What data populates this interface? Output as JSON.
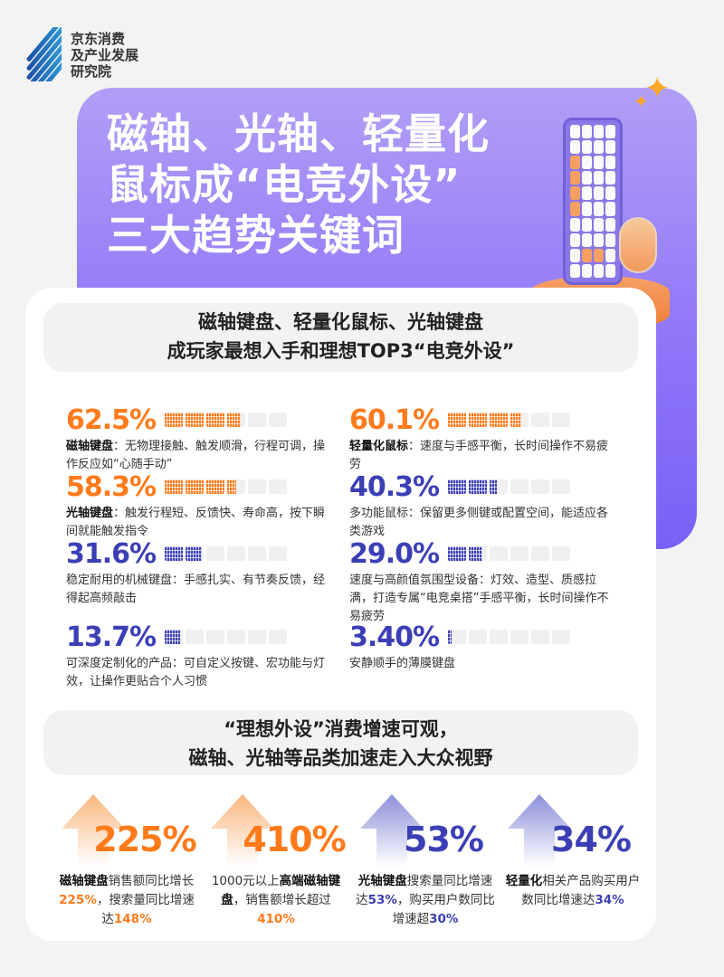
{
  "logo": {
    "lines": [
      "京东消费",
      "及产业发展",
      "研究院"
    ]
  },
  "hero": {
    "title_lines": [
      "磁轴、光轴、轻量化",
      "鼠标成“电竞外设”",
      "三大趋势关键词"
    ]
  },
  "colors": {
    "orange": "#ff7a1a",
    "blue": "#3b3fb5",
    "purple": "#8f76f8"
  },
  "section1": {
    "heading_lines": [
      "磁轴键盘、轻量化鼠标、光轴键盘",
      "成玩家最想入手和理想TOP3“电竞外设”"
    ],
    "slots_total": 6,
    "stats": [
      {
        "value": "62.5%",
        "fraction": 0.625,
        "color": "orange",
        "label": "磁轴键盘",
        "text": "：无物理接触、触发顺滑，行程可调，操作反应如“心随手动”"
      },
      {
        "value": "60.1%",
        "fraction": 0.601,
        "color": "orange",
        "label": "轻量化鼠标",
        "text": "：速度与手感平衡，长时间操作不易疲劳"
      },
      {
        "value": "58.3%",
        "fraction": 0.583,
        "color": "orange",
        "label": "光轴键盘",
        "text": "：触发行程短、反馈快、寿命高，按下瞬间就能触发指令"
      },
      {
        "value": "40.3%",
        "fraction": 0.403,
        "color": "blue",
        "label": "",
        "text": "多功能鼠标：保留更多侧键或配置空间，能适应各类游戏"
      },
      {
        "value": "31.6%",
        "fraction": 0.316,
        "color": "blue",
        "label": "",
        "text": "稳定耐用的机械键盘：手感扎实、有节奏反馈，经得起高频敲击"
      },
      {
        "value": "29.0%",
        "fraction": 0.29,
        "color": "blue",
        "label": "",
        "text": "速度与高颜值氛围型设备：灯效、造型、质感拉满，打造专属“电竞桌搭”手感平衡，长时间操作不易疲劳"
      },
      {
        "value": "13.7%",
        "fraction": 0.137,
        "color": "blue",
        "label": "",
        "text": "可深度定制化的产品：可自定义按键、宏功能与灯效，让操作更贴合个人习惯"
      },
      {
        "value": "3.40%",
        "fraction": 0.034,
        "color": "blue",
        "label": "",
        "text": "安静顺手的薄膜键盘"
      }
    ]
  },
  "section2": {
    "heading_lines": [
      "“理想外设”消费增速可观，",
      "磁轴、光轴等品类加速走入大众视野"
    ],
    "growth": [
      {
        "value": "225%",
        "color": "orange",
        "parts": [
          [
            "磁轴键盘",
            "b"
          ],
          [
            "销售额同比增长",
            ""
          ],
          [
            "225%",
            "c"
          ],
          [
            "，搜索量同比增速达",
            ""
          ],
          [
            "148%",
            "c"
          ]
        ]
      },
      {
        "value": "410%",
        "color": "orange",
        "parts": [
          [
            "1000元以上",
            ""
          ],
          [
            "高端磁轴键盘",
            "b"
          ],
          [
            "，销售额增长超过",
            ""
          ],
          [
            "410%",
            "c"
          ]
        ]
      },
      {
        "value": "53%",
        "color": "blue",
        "parts": [
          [
            "光轴键盘",
            "b"
          ],
          [
            "搜索量同比增速达",
            ""
          ],
          [
            "53%",
            "c"
          ],
          [
            "，购买用户数同比增速超",
            ""
          ],
          [
            "30%",
            "c"
          ]
        ]
      },
      {
        "value": "34%",
        "color": "blue",
        "parts": [
          [
            "轻量化",
            "b"
          ],
          [
            "相关产品购买用户数同比增速达",
            ""
          ],
          [
            "34%",
            "c"
          ]
        ]
      }
    ]
  }
}
